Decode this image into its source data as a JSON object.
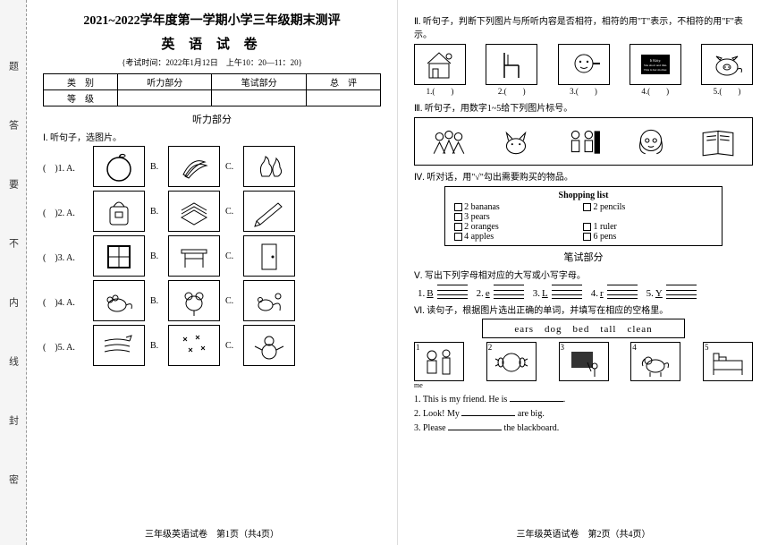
{
  "binding": [
    "题",
    "答",
    "要",
    "不",
    "内",
    "线",
    "封",
    "密"
  ],
  "page1": {
    "title": "2021~2022学年度第一学期小学三年级期末测评",
    "subject": "英 语 试 卷",
    "meta": "{考试时间：2022年1月12日　上午10：20—11：20}",
    "score_table": {
      "r1": [
        "类　别",
        "听力部分",
        "笔试部分",
        "总　评"
      ],
      "r2": [
        "等　级",
        "",
        "",
        ""
      ]
    },
    "section_listen": "听力部分",
    "q1_instr": "Ⅰ. 听句子，选图片。",
    "rows": [
      {
        "label": "(　)1. A.",
        "svgs": [
          "orange",
          "bananas",
          "pears"
        ]
      },
      {
        "label": "(　)2. A.",
        "svgs": [
          "bag",
          "books",
          "pen"
        ]
      },
      {
        "label": "(　)3. A.",
        "svgs": [
          "window",
          "desk",
          "door"
        ]
      },
      {
        "label": "(　)4. A.",
        "svgs": [
          "mouse1",
          "mouse2",
          "mouse3"
        ]
      },
      {
        "label": "(　)5. A.",
        "svgs": [
          "wind",
          "snow",
          "snowman"
        ]
      }
    ],
    "footer": "三年级英语试卷　第1页（共4页）"
  },
  "page2": {
    "q2_instr": "Ⅱ. 听句子，判断下列图片与所听内容是否相符，相符的用\"T\"表示，不相符的用\"F\"表示。",
    "q2_items": [
      "house",
      "chair",
      "face",
      "blackboard",
      "pig"
    ],
    "q2_labels": [
      "1.(　　)",
      "2.(　　)",
      "3.(　　)",
      "4.(　　)",
      "5.(　　)"
    ],
    "q3_instr": "Ⅲ. 听句子，用数字1~5给下列图片标号。",
    "q3_items": [
      "crowd",
      "cat",
      "kids",
      "girl",
      "book"
    ],
    "q4_instr": "Ⅳ. 听对话，用\"√\"勾出需要购买的物品。",
    "shopping": {
      "title": "Shopping list",
      "left": [
        {
          "n": "2",
          "w": "bananas"
        },
        {
          "n": "3",
          "w": "pears"
        },
        {
          "n": "2",
          "w": "oranges"
        },
        {
          "n": "4",
          "w": "apples"
        }
      ],
      "right": [
        {
          "n": "2",
          "w": "pencils"
        },
        {
          "n": "",
          "w": ""
        },
        {
          "n": "1",
          "w": "ruler"
        },
        {
          "n": "6",
          "w": "pens"
        }
      ]
    },
    "section_write": "笔试部分",
    "q5_instr": "Ⅴ. 写出下列字母相对应的大写或小写字母。",
    "letters": [
      {
        "n": "1.",
        "ch": "B"
      },
      {
        "n": "2.",
        "ch": "e"
      },
      {
        "n": "3.",
        "ch": "L"
      },
      {
        "n": "4.",
        "ch": "r"
      },
      {
        "n": "5.",
        "ch": "Y"
      }
    ],
    "q6_instr": "Ⅵ. 读句子，根据图片选出正确的单词，并填写在相应的空格里。",
    "wordbank": "ears　dog　bed　tall　clean",
    "q6_items": [
      "mefriend",
      "ears",
      "clean",
      "dog",
      "bed"
    ],
    "sentences": [
      "1. This is my friend. He is ________.",
      "2. Look! My ________ are big.",
      "3. Please ________ the blackboard."
    ],
    "footer": "三年级英语试卷　第2页（共4页）",
    "me_label": "me"
  },
  "colors": {
    "ink": "#000000",
    "paper": "#ffffff",
    "bg": "#e8e8e8"
  }
}
